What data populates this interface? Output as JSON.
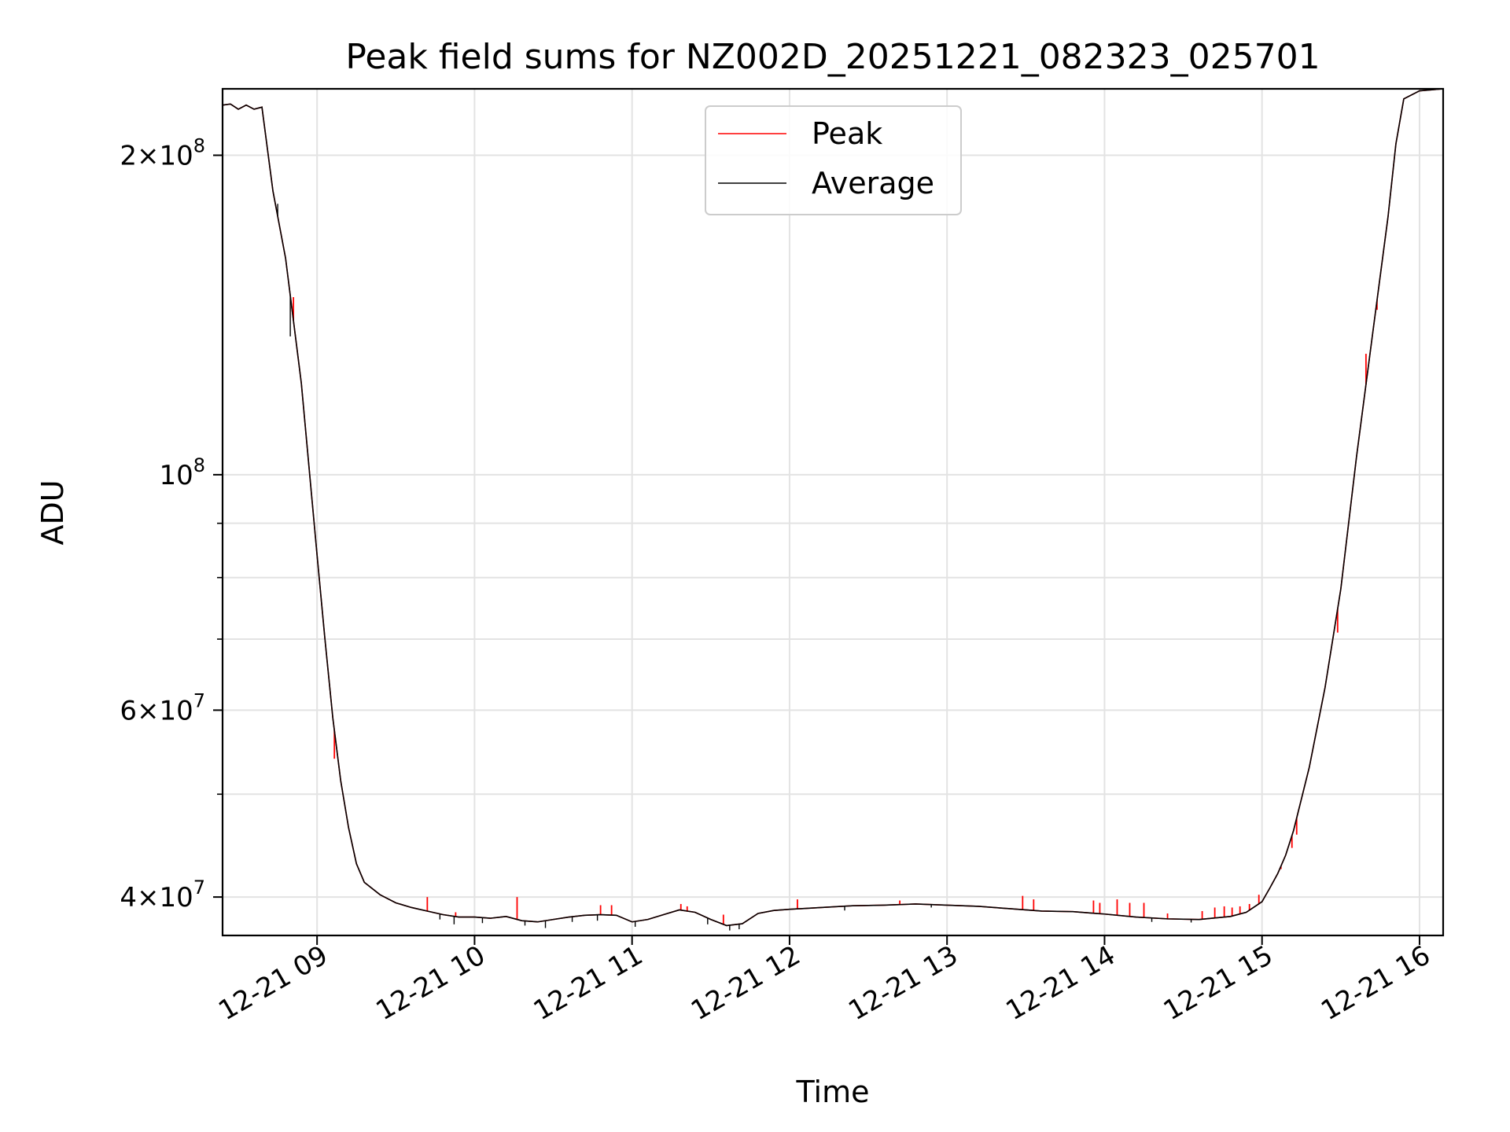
{
  "chart_data": {
    "type": "line",
    "title": "Peak field sums for NZ002D_20251221_082323_025701",
    "xlabel": "Time",
    "ylabel": "ADU",
    "y_scale": "log",
    "ylim": [
      36800000,
      231000000
    ],
    "xlim_hours": [
      8.4,
      16.15
    ],
    "grid": true,
    "legend_position": "upper center",
    "x_ticks": [
      {
        "value": 9,
        "label": "12-21 09"
      },
      {
        "value": 10,
        "label": "12-21 10"
      },
      {
        "value": 11,
        "label": "12-21 11"
      },
      {
        "value": 12,
        "label": "12-21 12"
      },
      {
        "value": 13,
        "label": "12-21 13"
      },
      {
        "value": 14,
        "label": "12-21 14"
      },
      {
        "value": 15,
        "label": "12-21 15"
      },
      {
        "value": 16,
        "label": "12-21 16"
      }
    ],
    "y_ticks": [
      {
        "value": 40000000,
        "mant": "4",
        "exp": "7"
      },
      {
        "value": 60000000,
        "mant": "6",
        "exp": "7"
      },
      {
        "value": 100000000,
        "mant": "",
        "exp": "8"
      },
      {
        "value": 200000000,
        "mant": "2",
        "exp": "8"
      }
    ],
    "y_minor_ticks": [
      50000000,
      70000000,
      80000000,
      90000000
    ],
    "series": [
      {
        "name": "Peak",
        "color": "#ff0000",
        "spikes": [
          [
            8.85,
            147000000
          ],
          [
            9.11,
            54000000
          ],
          [
            9.7,
            40000000
          ],
          [
            9.88,
            38700000
          ],
          [
            10.27,
            40000000
          ],
          [
            10.8,
            39300000
          ],
          [
            10.87,
            39300000
          ],
          [
            11.31,
            39400000
          ],
          [
            11.35,
            39200000
          ],
          [
            11.58,
            38500000
          ],
          [
            12.05,
            39800000
          ],
          [
            12.7,
            39700000
          ],
          [
            13.48,
            40100000
          ],
          [
            13.55,
            39800000
          ],
          [
            13.93,
            39700000
          ],
          [
            13.97,
            39500000
          ],
          [
            14.08,
            39800000
          ],
          [
            14.16,
            39500000
          ],
          [
            14.25,
            39500000
          ],
          [
            14.4,
            38600000
          ],
          [
            14.62,
            38800000
          ],
          [
            14.7,
            39100000
          ],
          [
            14.76,
            39200000
          ],
          [
            14.81,
            39100000
          ],
          [
            14.86,
            39200000
          ],
          [
            14.92,
            39400000
          ],
          [
            14.98,
            40200000
          ],
          [
            15.12,
            42500000
          ],
          [
            15.19,
            44500000
          ],
          [
            15.22,
            45800000
          ],
          [
            15.48,
            71000000
          ],
          [
            15.66,
            130000000
          ],
          [
            15.73,
            143000000
          ]
        ]
      },
      {
        "name": "Average",
        "color": "#000000",
        "points": [
          [
            8.4,
            223000000
          ],
          [
            8.45,
            223500000
          ],
          [
            8.5,
            221000000
          ],
          [
            8.55,
            223000000
          ],
          [
            8.6,
            221000000
          ],
          [
            8.65,
            222000000
          ],
          [
            8.72,
            185000000
          ],
          [
            8.8,
            160000000
          ],
          [
            8.9,
            122000000
          ],
          [
            9.0,
            84000000
          ],
          [
            9.05,
            70000000
          ],
          [
            9.1,
            59000000
          ],
          [
            9.15,
            51500000
          ],
          [
            9.2,
            46500000
          ],
          [
            9.25,
            43000000
          ],
          [
            9.3,
            41300000
          ],
          [
            9.4,
            40200000
          ],
          [
            9.5,
            39500000
          ],
          [
            9.6,
            39100000
          ],
          [
            9.7,
            38800000
          ],
          [
            9.8,
            38500000
          ],
          [
            9.9,
            38300000
          ],
          [
            10.0,
            38300000
          ],
          [
            10.1,
            38200000
          ],
          [
            10.2,
            38350000
          ],
          [
            10.3,
            38000000
          ],
          [
            10.4,
            37900000
          ],
          [
            10.5,
            38100000
          ],
          [
            10.6,
            38300000
          ],
          [
            10.7,
            38450000
          ],
          [
            10.8,
            38500000
          ],
          [
            10.9,
            38450000
          ],
          [
            11.0,
            37900000
          ],
          [
            11.1,
            38100000
          ],
          [
            11.2,
            38500000
          ],
          [
            11.3,
            38900000
          ],
          [
            11.4,
            38700000
          ],
          [
            11.5,
            38100000
          ],
          [
            11.6,
            37600000
          ],
          [
            11.7,
            37750000
          ],
          [
            11.8,
            38600000
          ],
          [
            11.9,
            38850000
          ],
          [
            12.0,
            38950000
          ],
          [
            12.2,
            39100000
          ],
          [
            12.4,
            39250000
          ],
          [
            12.6,
            39300000
          ],
          [
            12.8,
            39400000
          ],
          [
            13.0,
            39300000
          ],
          [
            13.2,
            39200000
          ],
          [
            13.4,
            39000000
          ],
          [
            13.6,
            38800000
          ],
          [
            13.8,
            38750000
          ],
          [
            14.0,
            38550000
          ],
          [
            14.2,
            38300000
          ],
          [
            14.4,
            38150000
          ],
          [
            14.6,
            38100000
          ],
          [
            14.8,
            38350000
          ],
          [
            14.9,
            38700000
          ],
          [
            15.0,
            39600000
          ],
          [
            15.05,
            40800000
          ],
          [
            15.1,
            42100000
          ],
          [
            15.15,
            43800000
          ],
          [
            15.2,
            46200000
          ],
          [
            15.3,
            53000000
          ],
          [
            15.4,
            63000000
          ],
          [
            15.5,
            78000000
          ],
          [
            15.6,
            104000000
          ],
          [
            15.7,
            135000000
          ],
          [
            15.8,
            175000000
          ],
          [
            15.85,
            205000000
          ],
          [
            15.9,
            226000000
          ],
          [
            16.0,
            230000000
          ],
          [
            16.15,
            231000000
          ]
        ],
        "dips": [
          [
            9.78,
            38100000
          ],
          [
            9.87,
            37700000
          ],
          [
            10.05,
            37800000
          ],
          [
            10.32,
            37600000
          ],
          [
            10.45,
            37400000
          ],
          [
            10.62,
            37900000
          ],
          [
            10.78,
            38000000
          ],
          [
            11.02,
            37500000
          ],
          [
            11.48,
            37700000
          ],
          [
            11.62,
            37200000
          ],
          [
            11.68,
            37300000
          ],
          [
            12.35,
            38850000
          ],
          [
            12.9,
            39100000
          ],
          [
            14.3,
            37900000
          ],
          [
            14.55,
            37850000
          ],
          [
            15.68,
            128000000
          ],
          [
            8.83,
            135000000
          ],
          [
            8.75,
            180000000
          ]
        ]
      }
    ]
  }
}
